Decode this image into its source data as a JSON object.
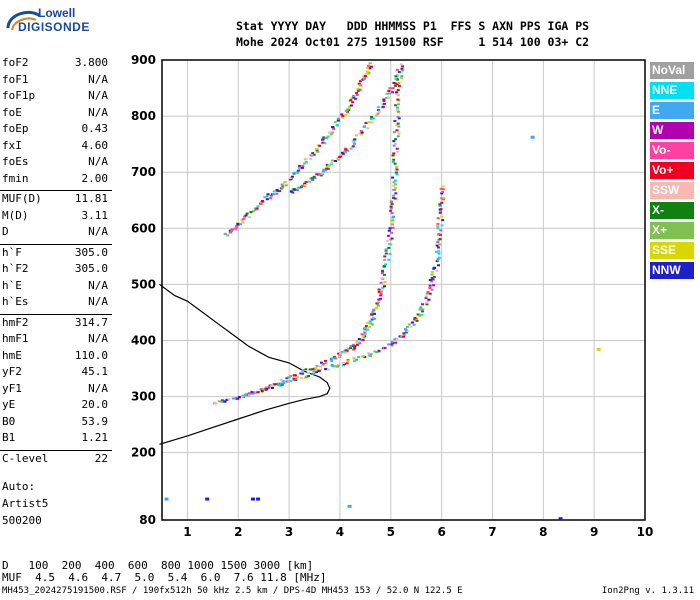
{
  "brand": {
    "line1": "Lowell",
    "line2": "DIGISONDE"
  },
  "header": {
    "line1": "Stat YYYY DAY   DDD HHMMSS P1  FFS S AXN PPS IGA PS",
    "line2": "Mohe 2024 Oct01 275 191500 RSF     1 514 100 03+ C2"
  },
  "params": [
    {
      "name": "foF2",
      "value": "3.800"
    },
    {
      "name": "foF1",
      "value": "N/A"
    },
    {
      "name": "foF1p",
      "value": "N/A"
    },
    {
      "name": "foE",
      "value": "N/A"
    },
    {
      "name": "foEp",
      "value": "0.43"
    },
    {
      "name": "fxI",
      "value": "4.60"
    },
    {
      "name": "foEs",
      "value": "N/A"
    },
    {
      "name": "fmin",
      "value": "2.00"
    },
    {
      "name": "MUF(D)",
      "value": "11.81"
    },
    {
      "name": "M(D)",
      "value": "3.11"
    },
    {
      "name": "D",
      "value": "N/A"
    },
    {
      "name": "h`F",
      "value": "305.0"
    },
    {
      "name": "h`F2",
      "value": "305.0"
    },
    {
      "name": "h`E",
      "value": "N/A"
    },
    {
      "name": "h`Es",
      "value": "N/A"
    },
    {
      "name": "hmF2",
      "value": "314.7"
    },
    {
      "name": "hmF1",
      "value": "N/A"
    },
    {
      "name": "hmE",
      "value": "110.0"
    },
    {
      "name": "yF2",
      "value": "45.1"
    },
    {
      "name": "yF1",
      "value": "N/A"
    },
    {
      "name": "yE",
      "value": "20.0"
    },
    {
      "name": "B0",
      "value": "53.9"
    },
    {
      "name": "B1",
      "value": "1.21"
    },
    {
      "name": "C-level",
      "value": "22"
    }
  ],
  "auto": {
    "line1": "Auto:",
    "line2": "Artist5",
    "line3": "500200"
  },
  "legend": [
    {
      "label": "NoVal",
      "color": "#a0a0a0"
    },
    {
      "label": "NNE",
      "color": "#00e0f0"
    },
    {
      "label": "E",
      "color": "#40a8f0"
    },
    {
      "label": "W",
      "color": "#b000b0"
    },
    {
      "label": "Vo-",
      "color": "#ff40a0"
    },
    {
      "label": "Vo+",
      "color": "#f00020"
    },
    {
      "label": "SSW",
      "color": "#f8b8b0"
    },
    {
      "label": "X-",
      "color": "#108010"
    },
    {
      "label": "X+",
      "color": "#80c050"
    },
    {
      "label": "SSE",
      "color": "#d8d800"
    },
    {
      "label": "NNW",
      "color": "#2020c8"
    }
  ],
  "dtable": {
    "row1": "D   100  200  400  600  800 1000 1500 3000 [km]",
    "row2": "MUF  4.5  4.6  4.7  5.0  5.4  6.0  7.6 11.8 [MHz]"
  },
  "footer": {
    "left": "MH453_2024275191500.RSF / 190fx512h 50 kHz 2.5 km / DPS-4D MH453 153 / 52.0 N 122.5 E",
    "right": "Ion2Png v. 1.3.11"
  },
  "chart_data": {
    "type": "scatter",
    "xlabel": "",
    "ylabel": "",
    "xlim": [
      0.5,
      10
    ],
    "ylim": [
      80,
      900
    ],
    "xticks": [
      1,
      2,
      3,
      4,
      5,
      6,
      7,
      8,
      9,
      10
    ],
    "yticks": [
      80,
      200,
      300,
      400,
      500,
      600,
      700,
      800,
      900
    ],
    "grid": true,
    "traces": [
      {
        "name": "O trace",
        "points": [
          [
            1.5,
            290
          ],
          [
            2.0,
            300
          ],
          [
            2.5,
            315
          ],
          [
            3.0,
            335
          ],
          [
            3.5,
            355
          ],
          [
            3.9,
            372
          ],
          [
            4.2,
            388
          ],
          [
            4.4,
            405
          ],
          [
            4.55,
            430
          ],
          [
            4.7,
            460
          ],
          [
            4.8,
            500
          ],
          [
            4.9,
            550
          ],
          [
            4.97,
            600
          ],
          [
            5.02,
            650
          ],
          [
            5.05,
            700
          ],
          [
            5.08,
            760
          ],
          [
            5.1,
            820
          ],
          [
            5.15,
            880
          ]
        ]
      },
      {
        "name": "X trace",
        "points": [
          [
            2.0,
            300
          ],
          [
            2.5,
            315
          ],
          [
            3.0,
            330
          ],
          [
            3.5,
            345
          ],
          [
            4.0,
            360
          ],
          [
            4.5,
            375
          ],
          [
            5.0,
            395
          ],
          [
            5.3,
            420
          ],
          [
            5.55,
            450
          ],
          [
            5.75,
            490
          ],
          [
            5.85,
            530
          ],
          [
            5.92,
            580
          ],
          [
            5.96,
            630
          ],
          [
            6.0,
            680
          ]
        ]
      },
      {
        "name": "second hop O",
        "points": [
          [
            1.75,
            590
          ],
          [
            2.0,
            610
          ],
          [
            2.3,
            635
          ],
          [
            2.6,
            660
          ],
          [
            2.9,
            680
          ],
          [
            3.2,
            710
          ],
          [
            3.5,
            740
          ],
          [
            3.8,
            775
          ],
          [
            4.1,
            810
          ],
          [
            4.3,
            840
          ],
          [
            4.45,
            870
          ],
          [
            4.6,
            895
          ]
        ]
      },
      {
        "name": "second hop X",
        "points": [
          [
            3.0,
            665
          ],
          [
            3.3,
            680
          ],
          [
            3.6,
            700
          ],
          [
            3.9,
            725
          ],
          [
            4.2,
            750
          ],
          [
            4.5,
            785
          ],
          [
            4.8,
            820
          ],
          [
            5.05,
            860
          ],
          [
            5.2,
            895
          ]
        ]
      }
    ],
    "profile": [
      [
        0.45,
        215
      ],
      [
        1.0,
        230
      ],
      [
        1.5,
        245
      ],
      [
        2.0,
        260
      ],
      [
        2.5,
        275
      ],
      [
        3.0,
        288
      ],
      [
        3.3,
        295
      ],
      [
        3.6,
        300
      ],
      [
        3.75,
        305
      ],
      [
        3.8,
        315
      ],
      [
        3.75,
        325
      ],
      [
        3.6,
        335
      ],
      [
        3.3,
        345
      ],
      [
        3.0,
        360
      ],
      [
        2.6,
        370
      ],
      [
        2.2,
        390
      ],
      [
        1.9,
        410
      ],
      [
        1.6,
        430
      ],
      [
        1.3,
        450
      ],
      [
        1.0,
        470
      ],
      [
        0.75,
        480
      ],
      [
        0.6,
        490
      ],
      [
        0.45,
        500
      ]
    ],
    "isolated": [
      {
        "x": 1.35,
        "y": 120,
        "color": "#2020c8"
      },
      {
        "x": 2.25,
        "y": 120,
        "color": "#2020c8"
      },
      {
        "x": 2.35,
        "y": 120,
        "color": "#2020c8"
      },
      {
        "x": 8.3,
        "y": 85,
        "color": "#2020c8"
      },
      {
        "x": 7.75,
        "y": 765,
        "color": "#40a8f0"
      },
      {
        "x": 9.05,
        "y": 387,
        "color": "#d8d800"
      },
      {
        "x": 0.55,
        "y": 120,
        "color": "#40a8f0"
      },
      {
        "x": 4.15,
        "y": 107,
        "color": "#40a8f0"
      }
    ]
  }
}
